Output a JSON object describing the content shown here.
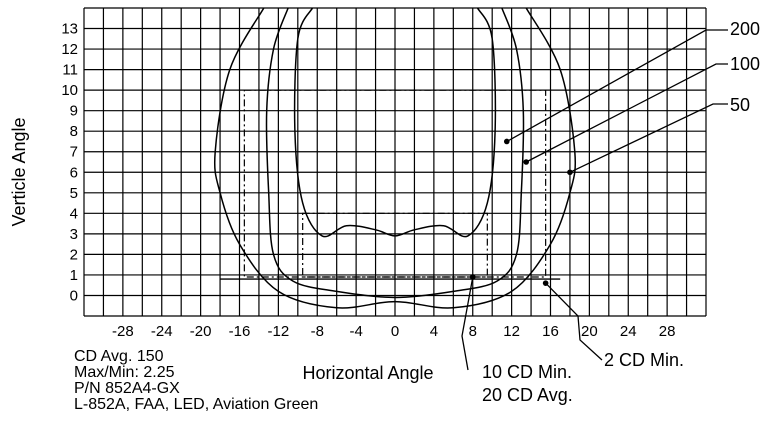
{
  "chart_data": {
    "type": "line",
    "title": "",
    "xlabel": "Horizontal Angle",
    "ylabel": "Verticle Angle",
    "xlim": [
      -32,
      32
    ],
    "ylim": [
      -1,
      14
    ],
    "grid": true,
    "x_ticks": [
      -28,
      -24,
      -20,
      -16,
      -12,
      -8,
      -4,
      0,
      4,
      8,
      12,
      16,
      20,
      24,
      28
    ],
    "y_ticks": [
      0,
      1,
      2,
      3,
      4,
      5,
      6,
      7,
      8,
      9,
      10,
      11,
      12,
      13
    ],
    "series": [
      {
        "name": "50",
        "points": [
          [
            -13.5,
            14
          ],
          [
            -17,
            11
          ],
          [
            -18.5,
            7
          ],
          [
            -18,
            5
          ],
          [
            -16,
            2.5
          ],
          [
            -12,
            0.2
          ],
          [
            -6,
            -0.6
          ],
          [
            0,
            -0.3
          ],
          [
            6,
            -0.6
          ],
          [
            12,
            0.2
          ],
          [
            16,
            2.5
          ],
          [
            18,
            5
          ],
          [
            18.5,
            7
          ],
          [
            17,
            11
          ],
          [
            13.5,
            14
          ]
        ]
      },
      {
        "name": "100",
        "points": [
          [
            -11,
            14
          ],
          [
            -12.5,
            12
          ],
          [
            -13.2,
            9
          ],
          [
            -13,
            5
          ],
          [
            -12.5,
            2
          ],
          [
            -10.5,
            0.7
          ],
          [
            -6,
            0.2
          ],
          [
            0,
            -0.1
          ],
          [
            6,
            0.2
          ],
          [
            10.5,
            0.7
          ],
          [
            12.5,
            2
          ],
          [
            13,
            5
          ],
          [
            13.2,
            9
          ],
          [
            12.5,
            12
          ],
          [
            11,
            14
          ]
        ]
      },
      {
        "name": "200",
        "points": [
          [
            -8.5,
            14
          ],
          [
            -10,
            12.5
          ],
          [
            -10.3,
            8
          ],
          [
            -9.5,
            4.5
          ],
          [
            -7.5,
            2.9
          ],
          [
            -5,
            3.4
          ],
          [
            -2,
            3.2
          ],
          [
            0,
            2.9
          ],
          [
            2,
            3.2
          ],
          [
            5,
            3.4
          ],
          [
            7.5,
            2.9
          ],
          [
            9.5,
            4.5
          ],
          [
            10.3,
            8
          ],
          [
            10,
            12.5
          ],
          [
            8.5,
            14
          ]
        ]
      }
    ],
    "dash_boxes": [
      {
        "x": [
          -15.5,
          15.5
        ],
        "y": [
          0.9,
          10
        ]
      },
      {
        "x": [
          -9.5,
          9.5
        ],
        "y": [
          0.9,
          4
        ]
      }
    ],
    "reference_line": {
      "x": [
        -18,
        17
      ],
      "y": 0.8
    },
    "callouts": [
      {
        "text": "200",
        "at": [
          11.5,
          7.5
        ]
      },
      {
        "text": "100",
        "at": [
          13.5,
          6.5
        ]
      },
      {
        "text": "50",
        "at": [
          18,
          6
        ]
      },
      {
        "text": "10 CD Min.",
        "at": [
          8,
          0.9
        ]
      },
      {
        "text": "20 CD Avg.",
        "at": [
          8,
          0.9
        ]
      },
      {
        "text": "2 CD Min.",
        "at": [
          15.5,
          0.6
        ]
      }
    ],
    "info_lines": [
      "CD Avg. 150",
      "Max/Min: 2.25",
      "P/N 852A4-GX",
      "L-852A, FAA, LED, Aviation Green"
    ]
  }
}
